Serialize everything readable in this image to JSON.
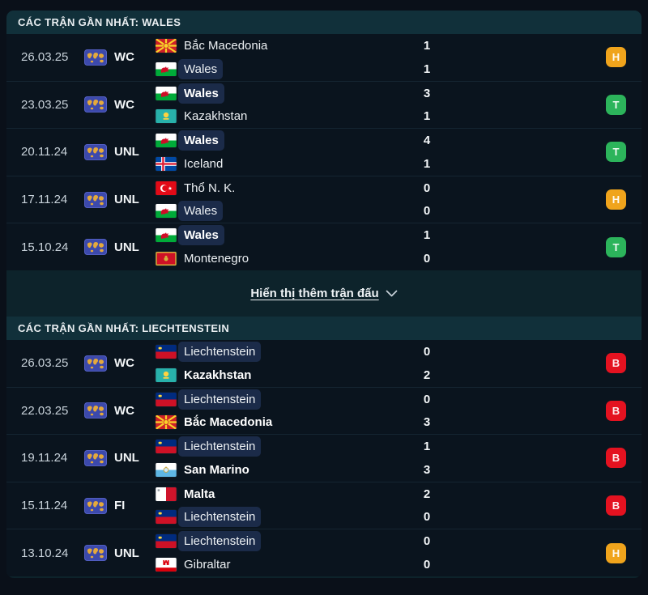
{
  "colors": {
    "result_win": "#2cb45b",
    "result_draw": "#f0a41c",
    "result_loss": "#e41220",
    "focal_highlight": "#1b2b49"
  },
  "sections": [
    {
      "title": "CÁC TRẬN GẦN NHẤT: WALES",
      "show_more": "Hiển thị thêm trận đấu",
      "matches": [
        {
          "date": "26.03.25",
          "competition": "WC",
          "home": {
            "name": "Bắc Macedonia",
            "flag": "macedonia",
            "score": "1",
            "bold": false,
            "focal": false
          },
          "away": {
            "name": "Wales",
            "flag": "wales",
            "score": "1",
            "bold": false,
            "focal": true
          },
          "result": {
            "letter": "H",
            "type": "draw"
          }
        },
        {
          "date": "23.03.25",
          "competition": "WC",
          "home": {
            "name": "Wales",
            "flag": "wales",
            "score": "3",
            "bold": true,
            "focal": true
          },
          "away": {
            "name": "Kazakhstan",
            "flag": "kazakhstan",
            "score": "1",
            "bold": false,
            "focal": false
          },
          "result": {
            "letter": "T",
            "type": "win"
          }
        },
        {
          "date": "20.11.24",
          "competition": "UNL",
          "home": {
            "name": "Wales",
            "flag": "wales",
            "score": "4",
            "bold": true,
            "focal": true
          },
          "away": {
            "name": "Iceland",
            "flag": "iceland",
            "score": "1",
            "bold": false,
            "focal": false
          },
          "result": {
            "letter": "T",
            "type": "win"
          }
        },
        {
          "date": "17.11.24",
          "competition": "UNL",
          "home": {
            "name": "Thổ N. K.",
            "flag": "turkey",
            "score": "0",
            "bold": false,
            "focal": false
          },
          "away": {
            "name": "Wales",
            "flag": "wales",
            "score": "0",
            "bold": false,
            "focal": true
          },
          "result": {
            "letter": "H",
            "type": "draw"
          }
        },
        {
          "date": "15.10.24",
          "competition": "UNL",
          "home": {
            "name": "Wales",
            "flag": "wales",
            "score": "1",
            "bold": true,
            "focal": true
          },
          "away": {
            "name": "Montenegro",
            "flag": "montenegro",
            "score": "0",
            "bold": false,
            "focal": false
          },
          "result": {
            "letter": "T",
            "type": "win"
          }
        }
      ]
    },
    {
      "title": "CÁC TRẬN GẦN NHẤT: LIECHTENSTEIN",
      "matches": [
        {
          "date": "26.03.25",
          "competition": "WC",
          "home": {
            "name": "Liechtenstein",
            "flag": "liechtenstein",
            "score": "0",
            "bold": false,
            "focal": true
          },
          "away": {
            "name": "Kazakhstan",
            "flag": "kazakhstan",
            "score": "2",
            "bold": true,
            "focal": false
          },
          "result": {
            "letter": "B",
            "type": "loss"
          }
        },
        {
          "date": "22.03.25",
          "competition": "WC",
          "home": {
            "name": "Liechtenstein",
            "flag": "liechtenstein",
            "score": "0",
            "bold": false,
            "focal": true
          },
          "away": {
            "name": "Bắc Macedonia",
            "flag": "macedonia",
            "score": "3",
            "bold": true,
            "focal": false
          },
          "result": {
            "letter": "B",
            "type": "loss"
          }
        },
        {
          "date": "19.11.24",
          "competition": "UNL",
          "home": {
            "name": "Liechtenstein",
            "flag": "liechtenstein",
            "score": "1",
            "bold": false,
            "focal": true
          },
          "away": {
            "name": "San Marino",
            "flag": "sanmarino",
            "score": "3",
            "bold": true,
            "focal": false
          },
          "result": {
            "letter": "B",
            "type": "loss"
          }
        },
        {
          "date": "15.11.24",
          "competition": "FI",
          "home": {
            "name": "Malta",
            "flag": "malta",
            "score": "2",
            "bold": true,
            "focal": false
          },
          "away": {
            "name": "Liechtenstein",
            "flag": "liechtenstein",
            "score": "0",
            "bold": false,
            "focal": true
          },
          "result": {
            "letter": "B",
            "type": "loss"
          }
        },
        {
          "date": "13.10.24",
          "competition": "UNL",
          "home": {
            "name": "Liechtenstein",
            "flag": "liechtenstein",
            "score": "0",
            "bold": false,
            "focal": true
          },
          "away": {
            "name": "Gibraltar",
            "flag": "gibraltar",
            "score": "0",
            "bold": false,
            "focal": false
          },
          "result": {
            "letter": "H",
            "type": "draw"
          }
        }
      ]
    }
  ]
}
